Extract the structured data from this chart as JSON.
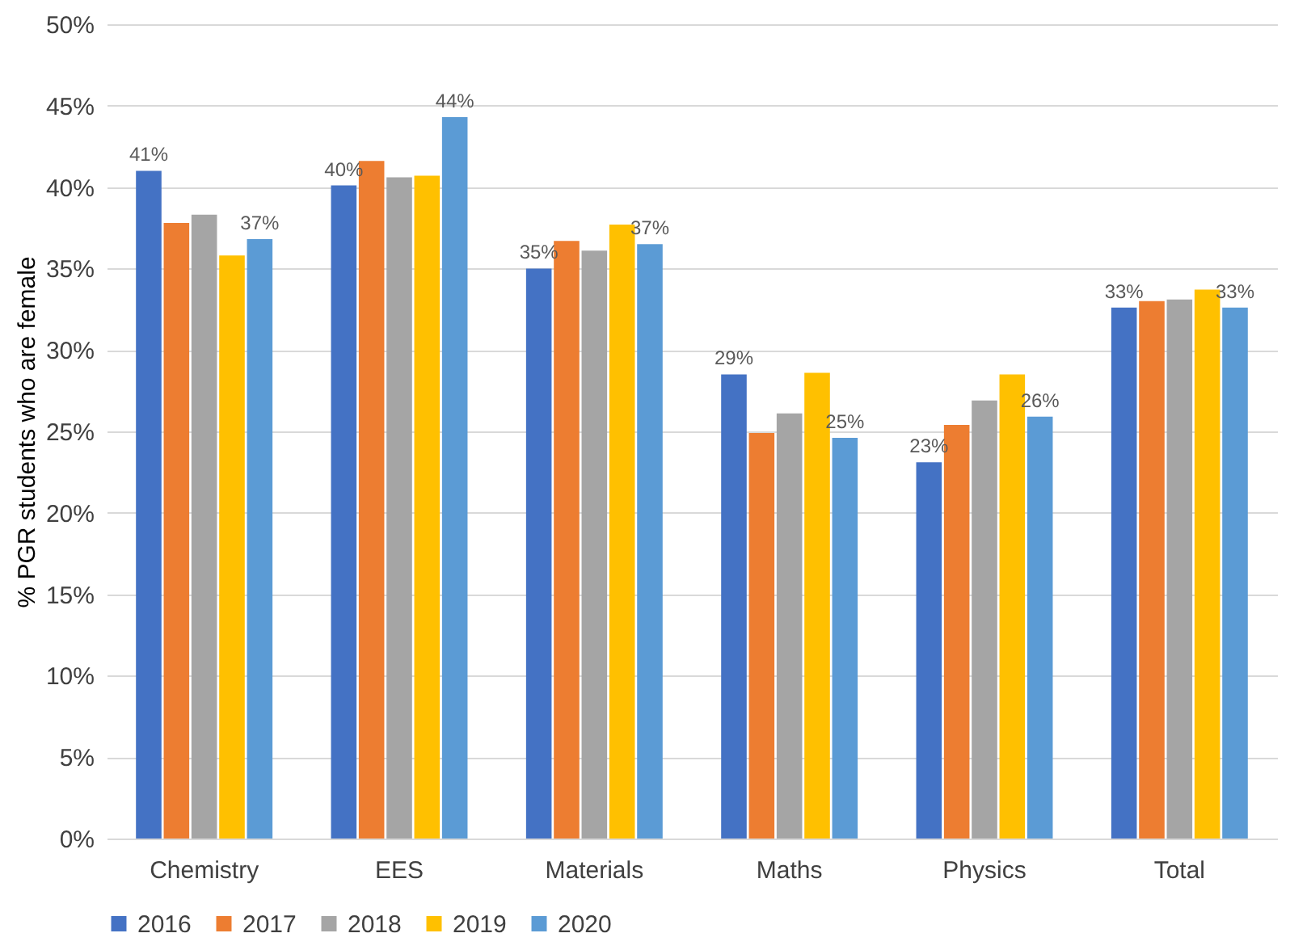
{
  "chart_data": {
    "type": "bar",
    "ylabel": "% PGR students who are female",
    "categories": [
      "Chemistry",
      "EES",
      "Materials",
      "Maths",
      "Physics",
      "Total"
    ],
    "series": [
      {
        "name": "2016",
        "color": "#4472c4",
        "values": [
          41.0,
          40.1,
          35.0,
          28.5,
          23.1,
          32.6
        ],
        "value_labels": [
          "41%",
          "40%",
          "35%",
          "29%",
          "23%",
          "33%"
        ]
      },
      {
        "name": "2017",
        "color": "#ed7d31",
        "values": [
          37.8,
          41.6,
          36.7,
          24.9,
          25.4,
          33.0
        ]
      },
      {
        "name": "2018",
        "color": "#a5a5a5",
        "values": [
          38.3,
          40.6,
          36.1,
          26.1,
          26.9,
          33.1
        ]
      },
      {
        "name": "2019",
        "color": "#ffc000",
        "values": [
          35.8,
          40.7,
          37.7,
          28.6,
          28.5,
          33.7
        ]
      },
      {
        "name": "2020",
        "color": "#5b9bd5",
        "values": [
          36.8,
          44.3,
          36.5,
          24.6,
          25.9,
          32.6
        ],
        "value_labels": [
          "37%",
          "44%",
          "37%",
          "25%",
          "26%",
          "33%"
        ]
      }
    ],
    "ylim": [
      0,
      50
    ],
    "yticks": [
      {
        "value": 0,
        "label": "0%"
      },
      {
        "value": 5,
        "label": "5%"
      },
      {
        "value": 10,
        "label": "10%"
      },
      {
        "value": 15,
        "label": "15%"
      },
      {
        "value": 20,
        "label": "20%"
      },
      {
        "value": 25,
        "label": "25%"
      },
      {
        "value": 30,
        "label": "30%"
      },
      {
        "value": 35,
        "label": "35%"
      },
      {
        "value": 40,
        "label": "40%"
      },
      {
        "value": 45,
        "label": "45%"
      },
      {
        "value": 50,
        "label": "50%"
      }
    ],
    "grid": "y",
    "legend": "bottom"
  }
}
